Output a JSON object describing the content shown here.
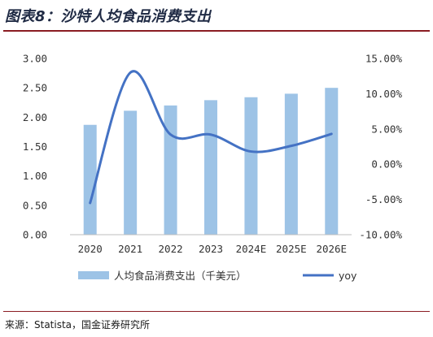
{
  "title": "图表8：沙特人均食品消费支出",
  "source": "来源：Statista，国金证券研究所",
  "colors": {
    "bar": "#9dc3e6",
    "line": "#4472c4",
    "title": "#1f2a44",
    "rule": "#8a1c22"
  },
  "chart_data": {
    "type": "bar",
    "categories": [
      "2020",
      "2021",
      "2022",
      "2023",
      "2024E",
      "2025E",
      "2026E"
    ],
    "series": [
      {
        "name": "人均食品消费支出（千美元）",
        "type": "bar",
        "axis": "left",
        "values": [
          1.87,
          2.11,
          2.2,
          2.29,
          2.34,
          2.4,
          2.5
        ]
      },
      {
        "name": "yoy",
        "type": "line",
        "axis": "right",
        "values": [
          -5.5,
          13.0,
          4.2,
          4.2,
          1.8,
          2.6,
          4.3
        ]
      }
    ],
    "y_left": {
      "min": 0,
      "max": 3,
      "ticks": [
        "0.00",
        "0.50",
        "1.00",
        "1.50",
        "2.00",
        "2.50",
        "3.00"
      ]
    },
    "y_right": {
      "min": -10,
      "max": 15,
      "ticks": [
        "-10.00%",
        "-5.00%",
        "0.00%",
        "5.00%",
        "10.00%",
        "15.00%"
      ]
    },
    "legend_position": "bottom",
    "grid": false
  }
}
